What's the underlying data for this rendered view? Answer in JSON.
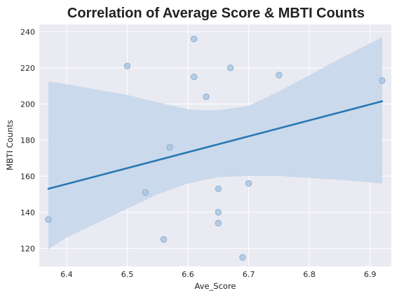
{
  "chart_data": {
    "type": "scatter",
    "title": "Correlation of Average Score & MBTI Counts",
    "xlabel": "Ave_Score",
    "ylabel": "MBTI Counts",
    "xlim": [
      6.355,
      6.935
    ],
    "ylim": [
      110,
      244
    ],
    "x_ticks": [
      "6.4",
      "6.5",
      "6.6",
      "6.7",
      "6.8",
      "6.9"
    ],
    "y_ticks": [
      "120",
      "140",
      "160",
      "180",
      "200",
      "220",
      "240"
    ],
    "grid": true,
    "points": [
      {
        "x": 6.37,
        "y": 136
      },
      {
        "x": 6.5,
        "y": 221
      },
      {
        "x": 6.53,
        "y": 151
      },
      {
        "x": 6.56,
        "y": 125
      },
      {
        "x": 6.57,
        "y": 176
      },
      {
        "x": 6.61,
        "y": 236
      },
      {
        "x": 6.61,
        "y": 215
      },
      {
        "x": 6.63,
        "y": 204
      },
      {
        "x": 6.65,
        "y": 153
      },
      {
        "x": 6.65,
        "y": 140
      },
      {
        "x": 6.65,
        "y": 134
      },
      {
        "x": 6.67,
        "y": 220
      },
      {
        "x": 6.69,
        "y": 115
      },
      {
        "x": 6.7,
        "y": 156
      },
      {
        "x": 6.75,
        "y": 216
      },
      {
        "x": 6.92,
        "y": 213
      }
    ],
    "regression": {
      "x": [
        6.37,
        6.92
      ],
      "y": [
        153,
        201.5
      ]
    },
    "ci_upper": [
      {
        "x": 6.37,
        "y": 212.5
      },
      {
        "x": 6.4,
        "y": 211
      },
      {
        "x": 6.45,
        "y": 208
      },
      {
        "x": 6.5,
        "y": 205
      },
      {
        "x": 6.55,
        "y": 201
      },
      {
        "x": 6.6,
        "y": 197
      },
      {
        "x": 6.62,
        "y": 196.5
      },
      {
        "x": 6.65,
        "y": 196.5
      },
      {
        "x": 6.7,
        "y": 199
      },
      {
        "x": 6.75,
        "y": 207
      },
      {
        "x": 6.8,
        "y": 216
      },
      {
        "x": 6.85,
        "y": 225
      },
      {
        "x": 6.92,
        "y": 237
      }
    ],
    "ci_lower": [
      {
        "x": 6.37,
        "y": 119.5
      },
      {
        "x": 6.4,
        "y": 126
      },
      {
        "x": 6.45,
        "y": 134
      },
      {
        "x": 6.5,
        "y": 142
      },
      {
        "x": 6.55,
        "y": 150
      },
      {
        "x": 6.6,
        "y": 156
      },
      {
        "x": 6.65,
        "y": 159.5
      },
      {
        "x": 6.7,
        "y": 160
      },
      {
        "x": 6.75,
        "y": 160
      },
      {
        "x": 6.8,
        "y": 159
      },
      {
        "x": 6.85,
        "y": 158
      },
      {
        "x": 6.92,
        "y": 156
      }
    ],
    "colors": {
      "background": "#eaeaf2",
      "grid": "#ffffff",
      "line": "#2a77b4",
      "band": "#c7d7ea",
      "point_fill": "#a9c4e0",
      "point_stroke": "#8fb1d6"
    }
  }
}
